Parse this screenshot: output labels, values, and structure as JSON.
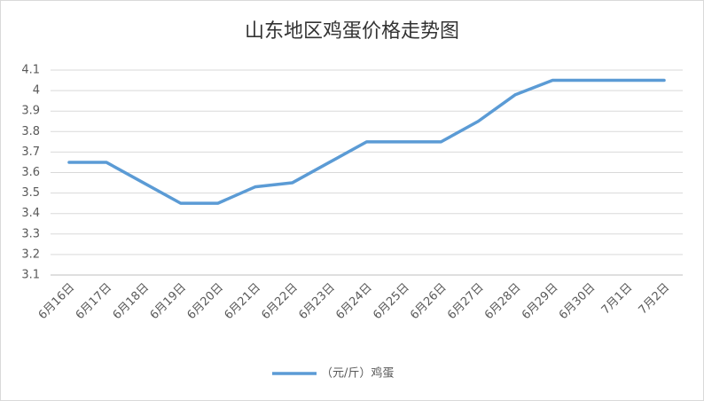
{
  "chart_data": {
    "type": "line",
    "title": "山东地区鸡蛋价格走势图",
    "categories": [
      "6月16日",
      "6月17日",
      "6月18日",
      "6月19日",
      "6月20日",
      "6月21日",
      "6月22日",
      "6月23日",
      "6月24日",
      "6月25日",
      "6月26日",
      "6月27日",
      "6月28日",
      "6月29日",
      "6月30日",
      "7月1日",
      "7月2日"
    ],
    "series": [
      {
        "name": "（元/斤）鸡蛋",
        "color": "#5b9bd5",
        "values": [
          3.65,
          3.65,
          3.55,
          3.45,
          3.45,
          3.53,
          3.55,
          3.65,
          3.75,
          3.75,
          3.75,
          3.85,
          3.98,
          4.05,
          4.05,
          4.05,
          4.05
        ]
      }
    ],
    "ylim": [
      3.1,
      4.1
    ],
    "yticks": [
      3.1,
      3.2,
      3.3,
      3.4,
      3.5,
      3.6,
      3.7,
      3.8,
      3.9,
      4,
      4.1
    ],
    "grid": true,
    "legend": "bottom"
  }
}
